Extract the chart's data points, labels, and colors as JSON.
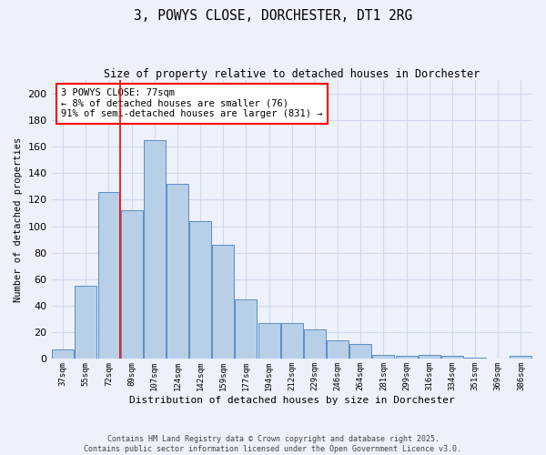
{
  "title": "3, POWYS CLOSE, DORCHESTER, DT1 2RG",
  "subtitle": "Size of property relative to detached houses in Dorchester",
  "xlabel": "Distribution of detached houses by size in Dorchester",
  "ylabel": "Number of detached properties",
  "categories": [
    "37sqm",
    "55sqm",
    "72sqm",
    "89sqm",
    "107sqm",
    "124sqm",
    "142sqm",
    "159sqm",
    "177sqm",
    "194sqm",
    "212sqm",
    "229sqm",
    "246sqm",
    "264sqm",
    "281sqm",
    "299sqm",
    "316sqm",
    "334sqm",
    "351sqm",
    "369sqm",
    "386sqm"
  ],
  "values": [
    7,
    55,
    126,
    112,
    165,
    132,
    104,
    86,
    45,
    27,
    27,
    22,
    14,
    11,
    3,
    2,
    3,
    2,
    1,
    0,
    2
  ],
  "bar_color": "#b8cfe8",
  "bar_edge_color": "#5b8ec4",
  "background_color": "#edf1f9",
  "grid_color": "#d0d8ee",
  "red_line_x": 2.5,
  "annotation_text": "3 POWYS CLOSE: 77sqm\n← 8% of detached houses are smaller (76)\n91% of semi-detached houses are larger (831) →",
  "annotation_box_color": "#ffffff",
  "annotation_box_edge": "red",
  "footer_line1": "Contains HM Land Registry data © Crown copyright and database right 2025.",
  "footer_line2": "Contains public sector information licensed under the Open Government Licence v3.0.",
  "ylim": [
    0,
    210
  ],
  "yticks": [
    0,
    20,
    40,
    60,
    80,
    100,
    120,
    140,
    160,
    180,
    200
  ]
}
